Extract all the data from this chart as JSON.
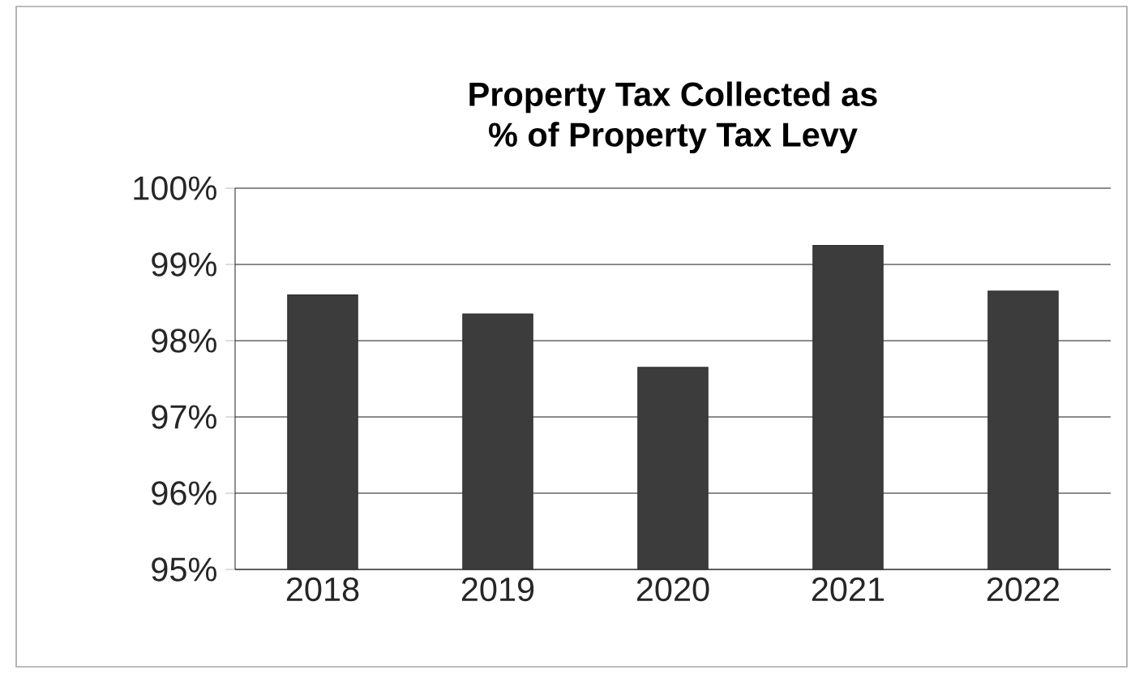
{
  "chart_data": {
    "type": "bar",
    "title": "Property Tax Collected as\n% of  Property Tax Levy",
    "categories": [
      "2018",
      "2019",
      "2020",
      "2021",
      "2022"
    ],
    "values": [
      98.6,
      98.35,
      97.65,
      99.25,
      98.65
    ],
    "color": "#3c3c3c",
    "ylim": [
      95,
      100
    ],
    "yticks": [
      {
        "value": 95,
        "label": "95%"
      },
      {
        "value": 96,
        "label": "96%"
      },
      {
        "value": 97,
        "label": "97%"
      },
      {
        "value": 98,
        "label": "98%"
      },
      {
        "value": 99,
        "label": "99%"
      },
      {
        "value": 100,
        "label": "100%"
      }
    ],
    "grid": "y"
  }
}
